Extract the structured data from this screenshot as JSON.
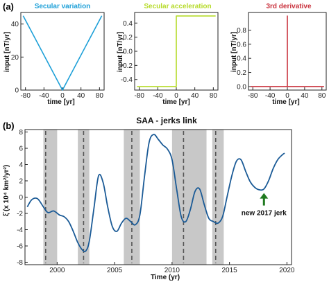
{
  "labels": {
    "panel_a": "(a)",
    "panel_b": "(b)"
  },
  "chart_data": [
    {
      "type": "line",
      "title": "Secular variation",
      "xlabel": "time [yr]",
      "ylabel": "input [nT/yr]",
      "xlim": [
        -90,
        90
      ],
      "ylim": [
        0,
        47
      ],
      "xticks": [
        "-80",
        "-40",
        "0",
        "40",
        "80"
      ],
      "xtick_values": [
        -80,
        -40,
        0,
        40,
        80
      ],
      "yticks": [
        "0",
        "20",
        "40"
      ],
      "ytick_values": [
        0,
        20,
        40
      ],
      "x": [
        -85,
        0,
        85
      ],
      "values": [
        45,
        0,
        45
      ],
      "color": "#1ea0d8"
    },
    {
      "type": "line",
      "title": "Secular acceleration",
      "xlabel": "time [yr]",
      "ylabel": "input [nT/yr]",
      "xlim": [
        -90,
        90
      ],
      "ylim": [
        -0.55,
        0.55
      ],
      "xticks": [
        "-80",
        "-40",
        "0",
        "40",
        "80"
      ],
      "xtick_values": [
        -80,
        -40,
        0,
        40,
        80
      ],
      "yticks": [
        "-0.4",
        "-0.2",
        "0.0",
        "0.2",
        "0.4"
      ],
      "ytick_values": [
        -0.4,
        -0.2,
        0,
        0.2,
        0.4
      ],
      "x": [
        -85,
        0,
        0,
        85
      ],
      "values": [
        -0.5,
        -0.5,
        0.5,
        0.5
      ],
      "color": "#b6db2a"
    },
    {
      "type": "line",
      "title": "3rd derivative",
      "xlabel": "time [yr]",
      "ylabel": "input [nT/yr]",
      "xlim": [
        -90,
        90
      ],
      "ylim": [
        -0.05,
        1.05
      ],
      "xticks": [
        "-80",
        "-40",
        "0",
        "40",
        "80"
      ],
      "xtick_values": [
        -80,
        -40,
        0,
        40,
        80
      ],
      "yticks": [
        "0.0",
        "0.2",
        "0.4",
        "0.6",
        "0.8"
      ],
      "ytick_values": [
        0,
        0.2,
        0.4,
        0.6,
        0.8
      ],
      "x": [
        -85,
        0,
        0,
        0,
        85
      ],
      "values": [
        0,
        0,
        1,
        0,
        0
      ],
      "color": "#c9323d"
    },
    {
      "type": "line",
      "title": "SAA - jerks link",
      "xlabel": "Time (yr)",
      "ylabel": "ξ̈ (x 10⁴ km²/yr²)",
      "xlim": [
        1997.2,
        2020.4
      ],
      "ylim": [
        -8.3,
        8.3
      ],
      "xticks": [
        "2000",
        "2005",
        "2010",
        "2015",
        "2020"
      ],
      "xtick_values": [
        2000,
        2005,
        2010,
        2015,
        2020
      ],
      "yticks": [
        "-8",
        "-6",
        "-4",
        "-2",
        "0",
        "2",
        "4",
        "6",
        "8"
      ],
      "ytick_values": [
        -8,
        -6,
        -4,
        -2,
        0,
        2,
        4,
        6,
        8
      ],
      "x": [
        1997.4,
        1997.8,
        1998.3,
        1998.8,
        1999.2,
        1999.7,
        2000.2,
        2000.6,
        2001.0,
        2001.4,
        2001.8,
        2002.2,
        2002.5,
        2002.8,
        2003.2,
        2003.6,
        2004.0,
        2004.4,
        2004.8,
        2005.2,
        2005.6,
        2006.0,
        2006.4,
        2006.8,
        2007.2,
        2007.6,
        2008.0,
        2008.4,
        2008.8,
        2009.2,
        2009.6,
        2010.0,
        2010.4,
        2010.8,
        2011.2,
        2011.6,
        2012.0,
        2012.4,
        2012.8,
        2013.2,
        2013.6,
        2014.0,
        2014.4,
        2014.8,
        2015.2,
        2015.6,
        2016.0,
        2016.4,
        2016.8,
        2017.2,
        2017.6,
        2018.0,
        2018.4,
        2018.8,
        2019.2,
        2019.6,
        2019.8
      ],
      "values": [
        -1.2,
        -0.3,
        -0.2,
        -1.2,
        -1.9,
        -1.7,
        -2.2,
        -2.4,
        -3.0,
        -4.2,
        -5.6,
        -6.5,
        -6.6,
        -5.4,
        -1.4,
        2.6,
        1.8,
        -1.2,
        -3.6,
        -4.2,
        -3.2,
        -2.6,
        -3.0,
        -3.4,
        -2.2,
        2.5,
        6.7,
        7.7,
        7.1,
        6.4,
        5.9,
        4.6,
        1.0,
        -2.4,
        -3.0,
        -1.5,
        0.7,
        1.0,
        -0.9,
        -2.6,
        -3.0,
        -3.2,
        -2.4,
        0.1,
        2.6,
        4.4,
        4.6,
        3.2,
        1.9,
        1.2,
        0.9,
        1.0,
        2.0,
        3.5,
        4.6,
        5.2,
        5.4
      ],
      "color": "#1a5a96",
      "jerk_bands": [
        [
          1998.8,
          2000.0
        ],
        [
          2001.8,
          2002.8
        ],
        [
          2005.8,
          2007.2
        ],
        [
          2010.0,
          2013.0
        ],
        [
          2013.5,
          2014.5
        ]
      ],
      "jerk_lines": [
        1999.0,
        2002.3,
        2006.5,
        2011.0,
        2013.8
      ],
      "annotation": {
        "text": "new 2017 jerk",
        "x": 2018.0,
        "y": -1.2,
        "arrow_color": "#1f7a1f"
      }
    }
  ]
}
